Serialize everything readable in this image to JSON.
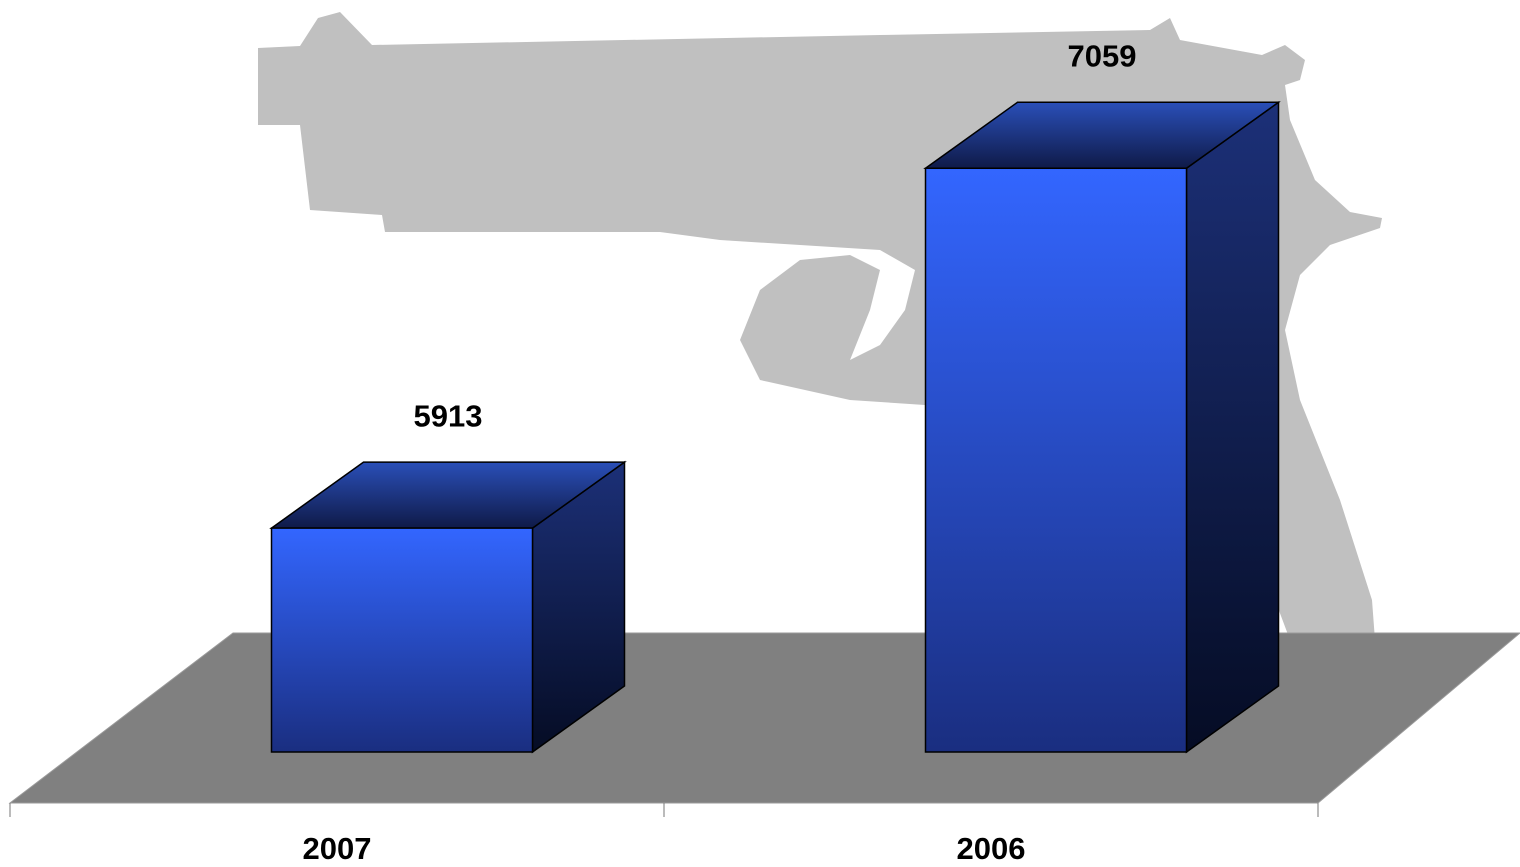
{
  "chart_data": {
    "type": "bar3d",
    "categories": [
      "2007",
      "2006"
    ],
    "values": [
      5913,
      7059
    ],
    "ylim": [
      5200,
      7200
    ],
    "color": "#3366ff"
  }
}
